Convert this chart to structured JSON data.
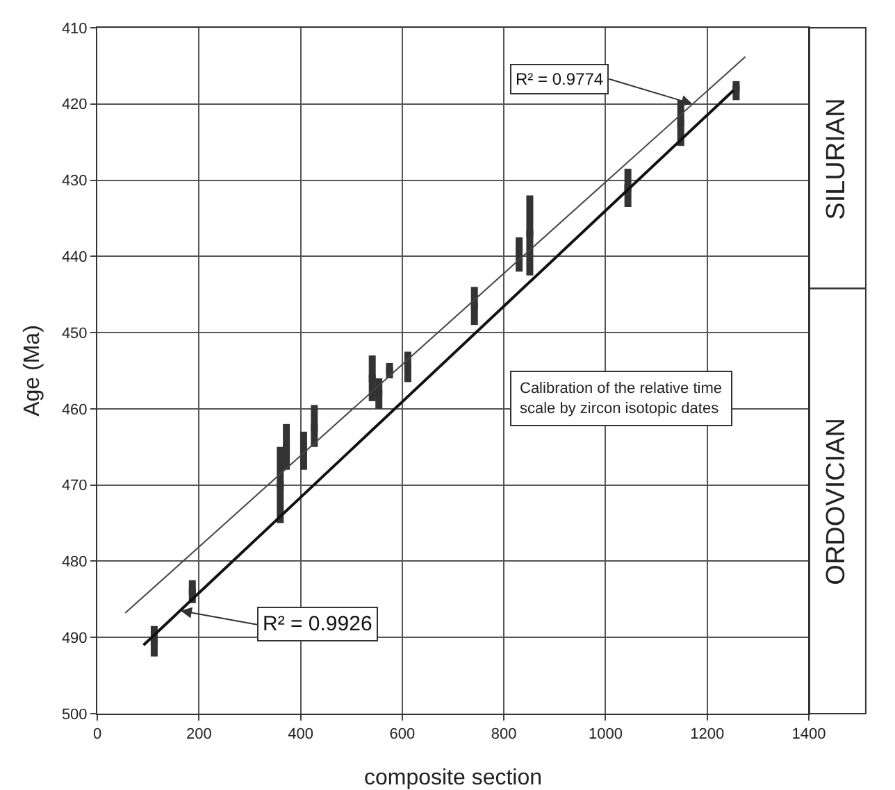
{
  "chart_data": {
    "type": "scatter",
    "xlabel": "composite section",
    "ylabel": "Age (Ma)",
    "xlim": [
      0,
      1400
    ],
    "xticks": [
      0,
      200,
      400,
      600,
      800,
      1000,
      1200,
      1400
    ],
    "ylim": [
      500,
      410
    ],
    "yticks": [
      410,
      420,
      430,
      440,
      450,
      460,
      470,
      480,
      490,
      500
    ],
    "grid": true,
    "series": [
      {
        "color": "#333333",
        "marker": "square",
        "x": [
          112,
          187,
          360,
          372,
          406,
          427,
          541,
          554,
          575,
          611,
          742,
          830,
          851,
          1044,
          1148,
          1257
        ],
        "values": [
          490.5,
          484,
          470,
          465,
          465.5,
          462.5,
          456,
          458,
          455,
          454.5,
          446.5,
          439.5,
          437,
          431,
          422.5,
          418
        ],
        "errors": [
          [
            488.5,
            492.5
          ],
          [
            482.5,
            485.5
          ],
          [
            465,
            475
          ],
          [
            462,
            468
          ],
          [
            463,
            468
          ],
          [
            459.5,
            465
          ],
          [
            453,
            459
          ],
          [
            456,
            460
          ],
          [
            454,
            456
          ],
          [
            452.5,
            456.5
          ],
          [
            444,
            449
          ],
          [
            437.5,
            442
          ],
          [
            432,
            442.5
          ],
          [
            428.5,
            433.5
          ],
          [
            419.5,
            425.5
          ],
          [
            417,
            419.5
          ]
        ]
      },
      {
        "type": "line",
        "color": "#111111",
        "line_style": "solid",
        "x": [
          91,
          1252
        ],
        "values": [
          491,
          418.2
        ]
      },
      {
        "type": "line",
        "color": "#444444",
        "line_style": "solid",
        "x": [
          55,
          1275
        ],
        "values": [
          486.8,
          413.8
        ]
      }
    ],
    "annotations": [
      {
        "text": "R² = 0.9926",
        "x": 164,
        "y": 486.5
      },
      {
        "text": "R² = 0.9774",
        "x": 1171,
        "y": 420
      },
      "Calibration of the relative time scale by zircon isotopic dates",
      "SILURIAN",
      "ORDOVICIAN"
    ]
  }
}
